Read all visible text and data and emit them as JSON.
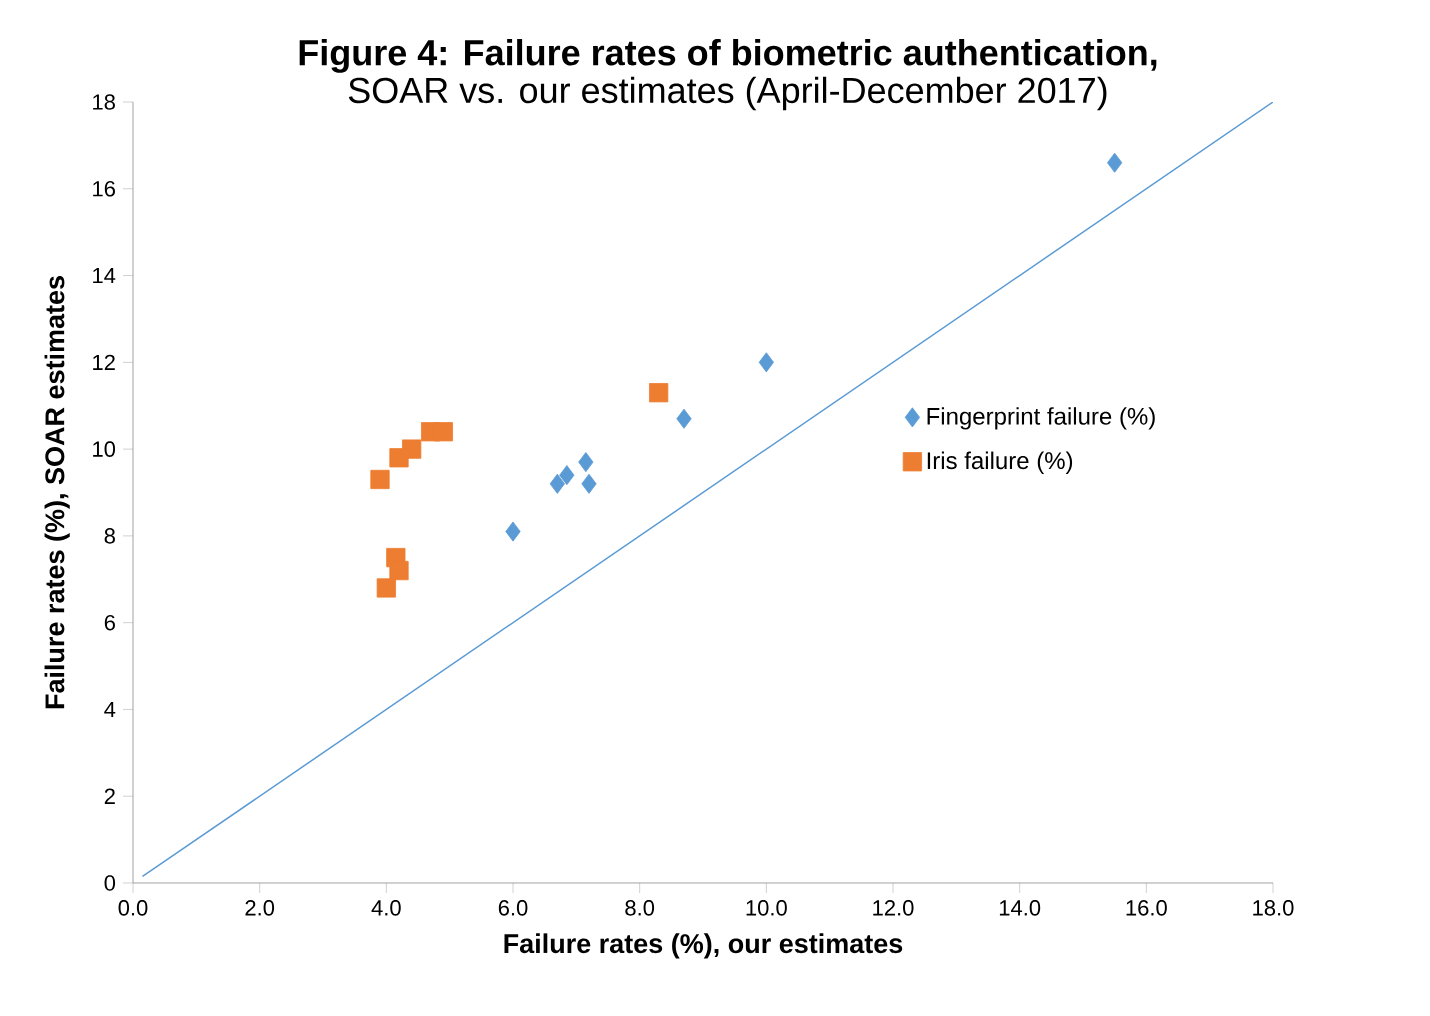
{
  "chart_data": {
    "type": "scatter",
    "title": "Figure 4: Failure rates of biometric authentication,",
    "subtitle": "SOAR vs. our estimates (April-December 2017)",
    "xlabel": "Failure rates  (%), our estimates",
    "ylabel": "Failure rates (%), SOAR estimates",
    "xlim": [
      0,
      18
    ],
    "ylim": [
      0,
      18
    ],
    "xticks": [
      {
        "value": 0,
        "label": "0.0"
      },
      {
        "value": 2,
        "label": "2.0"
      },
      {
        "value": 4,
        "label": "4.0"
      },
      {
        "value": 6,
        "label": "6.0"
      },
      {
        "value": 8,
        "label": "8.0"
      },
      {
        "value": 10,
        "label": "10.0"
      },
      {
        "value": 12,
        "label": "12.0"
      },
      {
        "value": 14,
        "label": "14.0"
      },
      {
        "value": 16,
        "label": "16.0"
      },
      {
        "value": 18,
        "label": "18.0"
      }
    ],
    "yticks": [
      0,
      2,
      4,
      6,
      8,
      10,
      12,
      14,
      16,
      18
    ],
    "grid": false,
    "legend": "right",
    "series": [
      {
        "name": "Fingerprint failure (%)",
        "color": "#5b9bd5",
        "marker": "diamond",
        "x": [
          6.0,
          6.7,
          6.85,
          7.15,
          7.2,
          8.7,
          10.0,
          15.5
        ],
        "values": [
          8.1,
          9.2,
          9.4,
          9.7,
          9.2,
          10.7,
          12.0,
          16.6
        ]
      },
      {
        "name": "Iris failure (%)",
        "color": "#ed7d31",
        "marker": "square",
        "x": [
          3.9,
          4.2,
          4.4,
          4.7,
          4.9,
          4.15,
          4.2,
          4.0,
          8.3
        ],
        "values": [
          9.3,
          9.8,
          10.0,
          10.4,
          10.4,
          7.5,
          7.2,
          6.8,
          11.3
        ]
      },
      {
        "type": "line",
        "color": "#5b9bd5",
        "marker": "none",
        "x": [
          0.15,
          18.0
        ],
        "values": [
          0.15,
          18.0
        ]
      }
    ]
  }
}
